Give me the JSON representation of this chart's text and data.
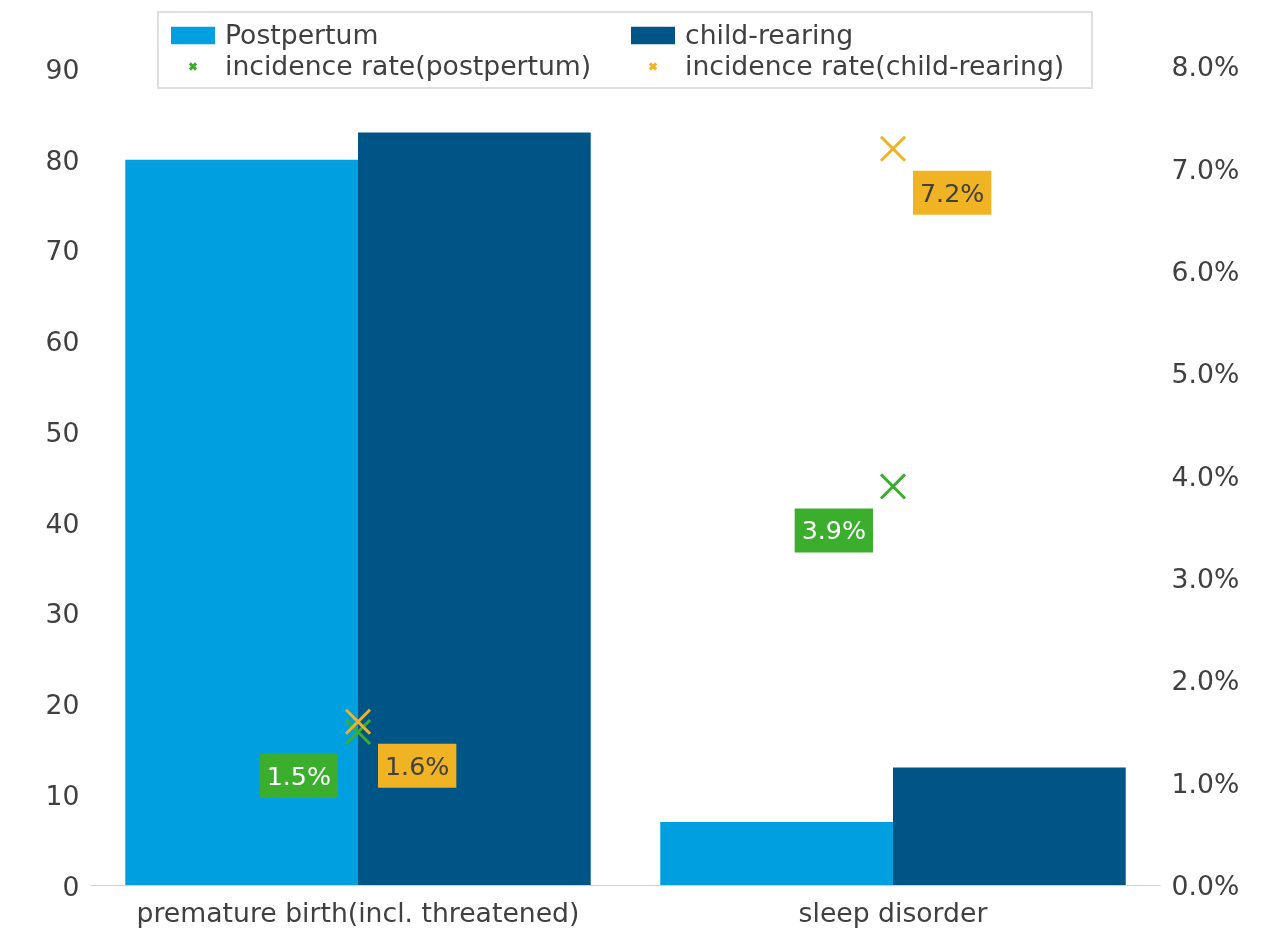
{
  "chart_data": {
    "type": "bar",
    "categories": [
      "premature birth(incl. threatened)",
      "sleep disorder"
    ],
    "series": [
      {
        "name": "Postpertum",
        "color": "#009fdf",
        "values": [
          80,
          7
        ]
      },
      {
        "name": "child-rearing",
        "color": "#005587",
        "values": [
          83,
          13
        ]
      },
      {
        "name": "incidence rate(postpertum)",
        "type": "scatter",
        "axis": "y2",
        "color": "#3cae2e",
        "values": [
          1.5,
          3.9
        ],
        "value_labels": [
          "1.5%",
          "3.9%"
        ]
      },
      {
        "name": "incidence rate(child-rearing)",
        "type": "scatter",
        "axis": "y2",
        "color": "#f0b323",
        "values": [
          1.6,
          7.2
        ],
        "value_labels": [
          "1.6%",
          "7.2%"
        ]
      }
    ],
    "ylim": [
      0,
      97
    ],
    "yticks": [
      0,
      10,
      20,
      30,
      40,
      50,
      60,
      70,
      80,
      90
    ],
    "y2lim": [
      0,
      8.6
    ],
    "y2ticks": [
      {
        "value": 0,
        "label": "0.0%"
      },
      {
        "value": 1,
        "label": "1.0%"
      },
      {
        "value": 2,
        "label": "2.0%"
      },
      {
        "value": 3,
        "label": "3.0%"
      },
      {
        "value": 4,
        "label": "4.0%"
      },
      {
        "value": 5,
        "label": "5.0%"
      },
      {
        "value": 6,
        "label": "6.0%"
      },
      {
        "value": 7,
        "label": "7.0%"
      },
      {
        "value": 8,
        "label": "8.0%"
      }
    ],
    "marker": "cross",
    "grid": false,
    "legend": "top"
  }
}
